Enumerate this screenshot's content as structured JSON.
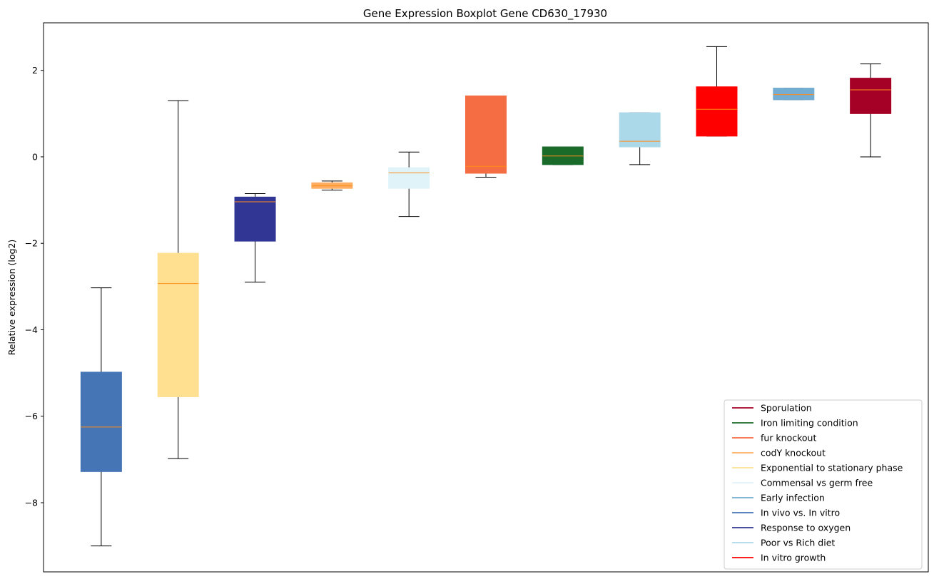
{
  "chart_data": {
    "type": "boxplot",
    "title": "Gene Expression Boxplot Gene CD630_17930",
    "xlabel": "",
    "ylabel": "Relative expression (log2)",
    "ylim": [
      -9.6,
      3.1
    ],
    "yticks": [
      2,
      0,
      -2,
      -4,
      -6,
      -8
    ],
    "median_color": "#ff8c1a",
    "boxes": [
      {
        "color": "#4575b4",
        "whisker_low": -9.0,
        "q1": -7.28,
        "median": -6.25,
        "q3": -4.98,
        "whisker_high": -3.03
      },
      {
        "color": "#fee090",
        "whisker_low": -6.98,
        "q1": -5.55,
        "median": -2.93,
        "q3": -2.23,
        "whisker_high": 1.3
      },
      {
        "color": "#313695",
        "whisker_low": -2.9,
        "q1": -1.95,
        "median": -1.04,
        "q3": -0.93,
        "whisker_high": -0.85
      },
      {
        "color": "#fdae61",
        "whisker_low": -0.77,
        "q1": -0.73,
        "median": -0.67,
        "q3": -0.6,
        "whisker_high": -0.56
      },
      {
        "color": "#e0f3f8",
        "whisker_low": -1.38,
        "q1": -0.73,
        "median": -0.37,
        "q3": -0.25,
        "whisker_high": 0.11
      },
      {
        "color": "#f46d43",
        "whisker_low": -0.47,
        "q1": -0.38,
        "median": -0.22,
        "q3": 1.41,
        "whisker_high": 1.41
      },
      {
        "color": "#1a6b2a",
        "whisker_low": -0.18,
        "q1": -0.18,
        "median": 0.02,
        "q3": 0.23,
        "whisker_high": 0.23
      },
      {
        "color": "#abd9e9",
        "whisker_low": -0.18,
        "q1": 0.23,
        "median": 0.36,
        "q3": 1.02,
        "whisker_high": 1.02
      },
      {
        "color": "#ff0000",
        "whisker_low": 0.48,
        "q1": 0.48,
        "median": 1.1,
        "q3": 1.62,
        "whisker_high": 2.55
      },
      {
        "color": "#74add1",
        "whisker_low": 1.32,
        "q1": 1.32,
        "median": 1.44,
        "q3": 1.59,
        "whisker_high": 1.59
      },
      {
        "color": "#a50026",
        "whisker_low": 0.0,
        "q1": 1.0,
        "median": 1.55,
        "q3": 1.82,
        "whisker_high": 2.15
      }
    ],
    "legend_position": "lower-right",
    "legend": [
      {
        "label": "Sporulation",
        "color": "#a50026"
      },
      {
        "label": "Iron limiting condition",
        "color": "#1a6b2a"
      },
      {
        "label": "fur knockout",
        "color": "#f46d43"
      },
      {
        "label": "codY knockout",
        "color": "#fdae61"
      },
      {
        "label": "Exponential to stationary phase",
        "color": "#fee090"
      },
      {
        "label": "Commensal vs germ free",
        "color": "#e0f3f8"
      },
      {
        "label": "Early infection",
        "color": "#74add1"
      },
      {
        "label": "In vivo vs. In vitro",
        "color": "#4575b4"
      },
      {
        "label": "Response to oxygen",
        "color": "#313695"
      },
      {
        "label": "Poor vs Rich diet",
        "color": "#abd9e9"
      },
      {
        "label": "In vitro growth",
        "color": "#ff0000"
      }
    ]
  }
}
